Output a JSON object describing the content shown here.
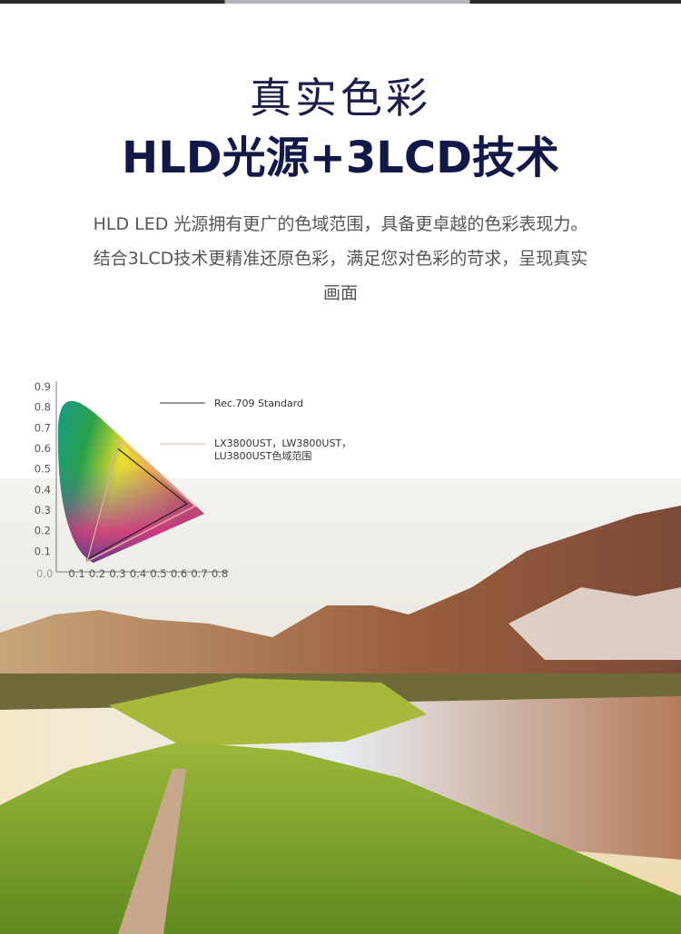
{
  "heading": {
    "line1": "真实色彩",
    "line2": "HLD光源+3LCD技术"
  },
  "description": {
    "line1": "HLD  LED 光源拥有更广的色域范围，具备更卓越的色彩表现力。",
    "line2": "结合3LCD技术更精准还原色彩，满足您对色彩的苛求，呈现真实",
    "line3": "画面"
  },
  "chart_data": {
    "type": "scatter",
    "xlim": [
      0,
      0.8
    ],
    "ylim": [
      0,
      0.9
    ],
    "x_ticks": [
      "0.0",
      "0.1",
      "0.2",
      "0.3",
      "0.4",
      "0.5",
      "0.6",
      "0.7",
      "0.8"
    ],
    "y_ticks": [
      "0.1",
      "0.2",
      "0.3",
      "0.4",
      "0.5",
      "0.6",
      "0.7",
      "0.8",
      "0.9"
    ],
    "legend_placement": "top-right",
    "series": [
      {
        "name": "Rec.709 Standard",
        "color": "#222222",
        "points": [
          [
            0.64,
            0.33
          ],
          [
            0.3,
            0.6
          ],
          [
            0.15,
            0.06
          ]
        ]
      },
      {
        "name": "LX3800UST，LW3800UST，LU3800UST色域范围",
        "name_line1": "LX3800UST，LW3800UST，",
        "name_line2": "LU3800UST色域范围",
        "color": "#e8a8a8",
        "points": [
          [
            0.68,
            0.32
          ],
          [
            0.31,
            0.64
          ],
          [
            0.15,
            0.05
          ]
        ]
      }
    ]
  }
}
